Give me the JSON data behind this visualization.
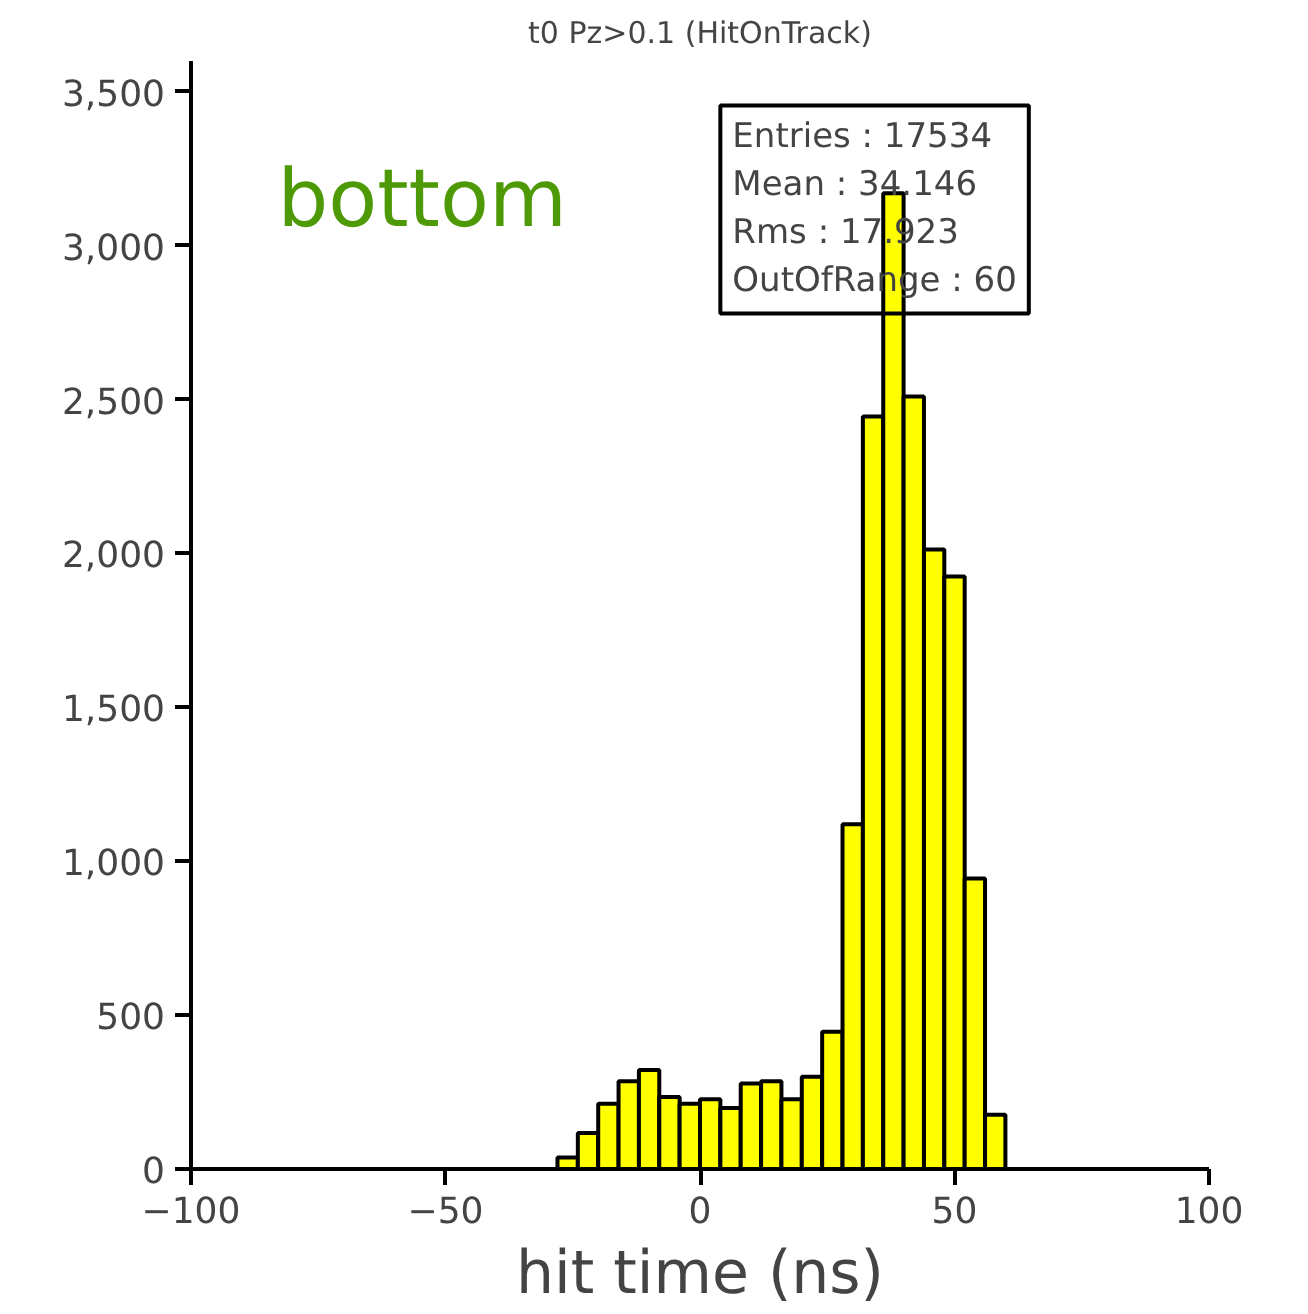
{
  "chart_data": {
    "type": "histogram",
    "title": "t0 Pz>0.1 (HitOnTrack)",
    "xlabel": "hit time (ns)",
    "bins": [
      -100,
      -96,
      -92,
      -88,
      -84,
      -80,
      -76,
      -72,
      -68,
      -64,
      -60,
      -56,
      -52,
      -48,
      -44,
      -40,
      -36,
      -32,
      -28,
      -24,
      -20,
      -16,
      -12,
      -8,
      -4,
      0,
      4,
      8,
      12,
      16,
      20,
      24,
      28,
      32,
      36,
      40,
      44,
      48,
      52,
      56,
      60,
      64,
      68,
      72,
      76,
      80,
      84,
      88,
      92,
      96,
      100
    ],
    "values": [
      0,
      0,
      0,
      0,
      0,
      0,
      0,
      0,
      0,
      0,
      0,
      0,
      0,
      0,
      0,
      0,
      0,
      0,
      37,
      117,
      212,
      285,
      322,
      234,
      212,
      227,
      198,
      278,
      285,
      227,
      300,
      446,
      1120,
      2445,
      3170,
      2510,
      2013,
      1925,
      944,
      176,
      0,
      0,
      0,
      0,
      0,
      0,
      0,
      0,
      0,
      0
    ],
    "color": "#ffff00",
    "xlim": [
      -100,
      100
    ],
    "xticks": [
      {
        "value": -100,
        "label": "−100"
      },
      {
        "value": -50,
        "label": "−50"
      },
      0,
      50,
      100
    ],
    "ylim": [
      0,
      3600
    ],
    "yticks": [
      0,
      500,
      {
        "value": 1000,
        "label": "1,000"
      },
      {
        "value": 1500,
        "label": "1,500"
      },
      {
        "value": 2000,
        "label": "2,000"
      },
      {
        "value": 2500,
        "label": "2,500"
      },
      {
        "value": 3000,
        "label": "3,000"
      },
      {
        "value": 3500,
        "label": "3,500"
      }
    ],
    "grid": false,
    "annotations": [
      "bottom",
      "Entries :  17534",
      "Mean :   34.146",
      "Rms :   17.923",
      "OutOfRange : 60"
    ]
  }
}
